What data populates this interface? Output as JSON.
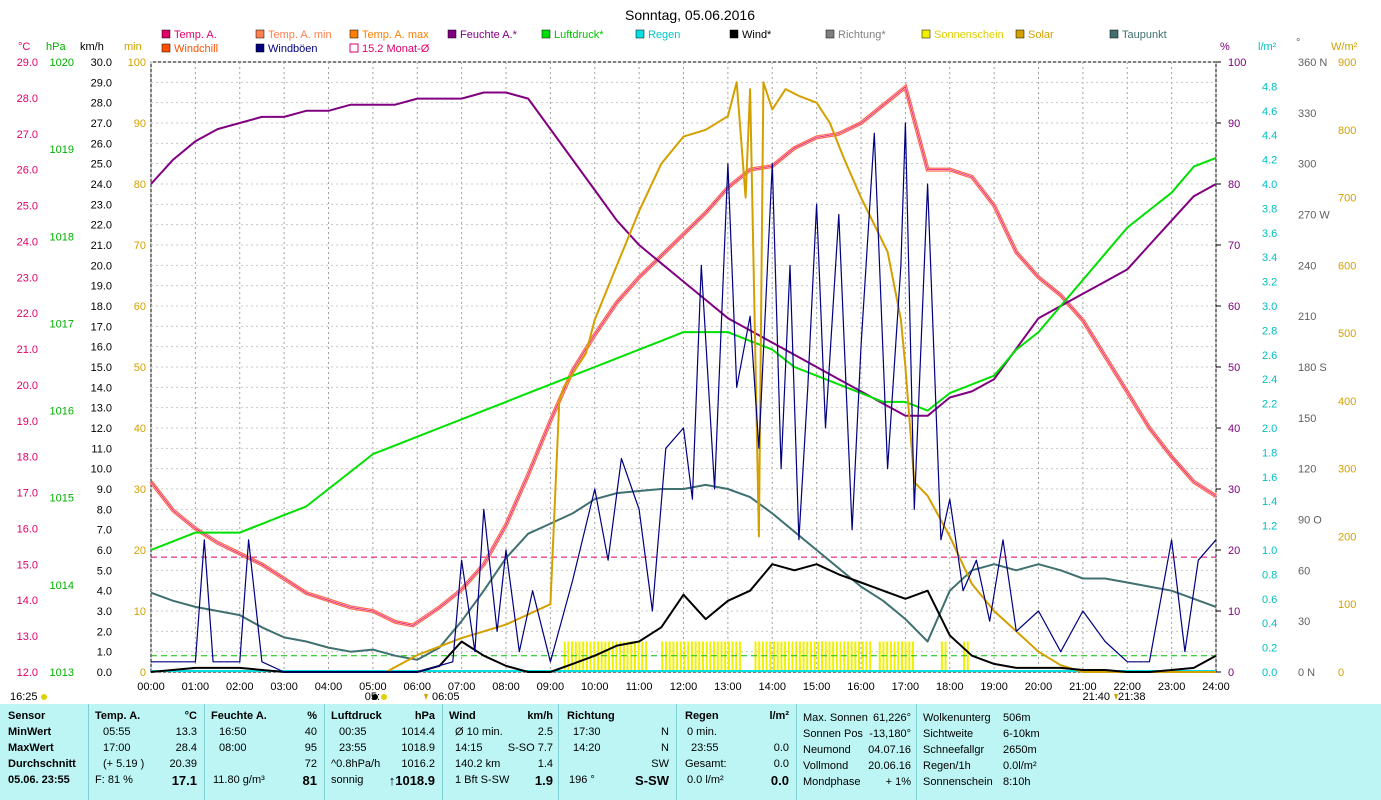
{
  "title": "Sonntag, 05.06.2016",
  "legend": [
    {
      "label": "Temp. A.",
      "color": "#e0006a"
    },
    {
      "label": "Temp. A. min",
      "color": "#ff7f50"
    },
    {
      "label": "Temp. A. max",
      "color": "#ff7f00"
    },
    {
      "label": "Feuchte A.*",
      "color": "#800080"
    },
    {
      "label": "Luftdruck*",
      "color": "#00e000"
    },
    {
      "label": "Regen",
      "color": "#00e0e0"
    },
    {
      "label": "Wind*",
      "color": "#000000"
    },
    {
      "label": "Richtung*",
      "color": "#808080"
    },
    {
      "label": "Sonnenschein",
      "color": "#f0f000"
    },
    {
      "label": "Solar",
      "color": "#d4a000"
    },
    {
      "label": "Taupunkt",
      "color": "#407070"
    },
    {
      "label": "Windchill",
      "color": "#ff5000"
    },
    {
      "label": "Windböen",
      "color": "#000080"
    },
    {
      "label": "15.2 Monat-Ø",
      "color": "#e0006a"
    }
  ],
  "axis_units": {
    "temp": "°C",
    "press": "hPa",
    "wind": "km/h",
    "min": "min",
    "hum": "%",
    "rain": "l/m²",
    "dir": "°",
    "solar": "W/m²"
  },
  "chart_data": {
    "type": "line",
    "x_ticks": [
      "00:00",
      "01:00",
      "02:00",
      "03:00",
      "04:00",
      "05:00",
      "06:00",
      "07:00",
      "08:00",
      "09:00",
      "10:00",
      "11:00",
      "12:00",
      "13:00",
      "14:00",
      "15:00",
      "16:00",
      "17:00",
      "18:00",
      "19:00",
      "20:00",
      "21:00",
      "22:00",
      "23:00",
      "24:00"
    ],
    "axes": {
      "temp": {
        "range": [
          12,
          29
        ],
        "ticks": [
          "29.0",
          "28.0",
          "27.0",
          "26.0",
          "25.0",
          "24.0",
          "23.0",
          "22.0",
          "21.0",
          "20.0",
          "19.0",
          "18.0",
          "17.0",
          "16.0",
          "15.0",
          "14.0",
          "13.0",
          "12.0"
        ]
      },
      "pressure": {
        "range": [
          1013,
          1020
        ],
        "ticks": [
          "1020",
          "1019",
          "1018",
          "1017",
          "1016",
          "1015",
          "1014",
          "1013"
        ]
      },
      "wind": {
        "range": [
          0,
          30
        ],
        "ticks": [
          "30.0",
          "29.0",
          "28.0",
          "27.0",
          "26.0",
          "25.0",
          "24.0",
          "23.0",
          "22.0",
          "21.0",
          "20.0",
          "19.0",
          "18.0",
          "17.0",
          "16.0",
          "15.0",
          "14.0",
          "13.0",
          "12.0",
          "11.0",
          "10.0",
          "9.0",
          "8.0",
          "7.0",
          "6.0",
          "5.0",
          "4.0",
          "3.0",
          "2.0",
          "1.0",
          "0.0"
        ]
      },
      "minutes": {
        "range": [
          0,
          100
        ],
        "ticks": [
          "100",
          "90",
          "80",
          "70",
          "60",
          "50",
          "40",
          "30",
          "20",
          "10",
          "0"
        ]
      },
      "humidity": {
        "range": [
          0,
          100
        ],
        "ticks": [
          "100",
          "90",
          "80",
          "70",
          "60",
          "50",
          "40",
          "30",
          "20",
          "10",
          "0"
        ]
      },
      "rain": {
        "range": [
          0,
          5
        ],
        "ticks": [
          "4.8",
          "4.6",
          "4.4",
          "4.2",
          "4.0",
          "3.8",
          "3.6",
          "3.4",
          "3.2",
          "3.0",
          "2.8",
          "2.6",
          "2.4",
          "2.2",
          "2.0",
          "1.8",
          "1.6",
          "1.4",
          "1.2",
          "1.0",
          "0.8",
          "0.6",
          "0.4",
          "0.2",
          "0.0"
        ]
      },
      "direction": {
        "range": [
          0,
          360
        ],
        "ticks": [
          "360 N",
          "330",
          "300",
          "270 W",
          "240",
          "210",
          "180 S",
          "150",
          "120",
          "90 O",
          "60",
          "30",
          "0 N"
        ]
      },
      "solar": {
        "range": [
          0,
          900
        ],
        "ticks": [
          "900",
          "800",
          "700",
          "600",
          "500",
          "400",
          "300",
          "200",
          "100",
          "0"
        ]
      }
    },
    "series": [
      {
        "name": "Temp. A.",
        "axis": "temp",
        "color": "#e0006a",
        "x": [
          0,
          0.5,
          1,
          1.5,
          2,
          2.5,
          3,
          3.5,
          4,
          4.5,
          5,
          5.5,
          5.9,
          6.5,
          7,
          7.5,
          8,
          8.5,
          9,
          9.5,
          10,
          10.5,
          11,
          11.5,
          12,
          12.5,
          13,
          13.5,
          14,
          14.5,
          15,
          15.5,
          16,
          16.5,
          17,
          17.5,
          18,
          18.5,
          19,
          19.5,
          20,
          20.5,
          21,
          21.5,
          22,
          22.5,
          23,
          23.5,
          24
        ],
        "y": [
          17.3,
          16.5,
          16.0,
          15.6,
          15.3,
          15.0,
          14.6,
          14.2,
          14.0,
          13.8,
          13.7,
          13.4,
          13.3,
          13.8,
          14.3,
          15.0,
          16.1,
          17.5,
          19.0,
          20.4,
          21.4,
          22.3,
          23.0,
          23.6,
          24.2,
          24.8,
          25.5,
          26.0,
          26.1,
          26.6,
          26.9,
          27.0,
          27.3,
          27.8,
          28.3,
          26.0,
          26.0,
          25.8,
          25.0,
          23.7,
          23.0,
          22.5,
          21.8,
          20.8,
          19.8,
          18.8,
          18.0,
          17.3,
          16.9
        ]
      },
      {
        "name": "Feuchte A.*",
        "axis": "humidity",
        "color": "#800080",
        "x": [
          0,
          0.5,
          1,
          1.5,
          2,
          2.5,
          3,
          3.5,
          4,
          4.5,
          5,
          5.5,
          6,
          6.5,
          7,
          7.5,
          8,
          8.5,
          9,
          9.5,
          10,
          10.5,
          11,
          11.5,
          12,
          12.5,
          13,
          13.5,
          14,
          14.5,
          15,
          15.5,
          16,
          16.5,
          17,
          17.5,
          18,
          18.5,
          19,
          19.5,
          20,
          20.5,
          21,
          21.5,
          22,
          22.5,
          23,
          23.5,
          24
        ],
        "y": [
          80,
          84,
          87,
          89,
          90,
          91,
          91,
          92,
          92,
          93,
          93,
          93,
          94,
          94,
          94,
          95,
          95,
          94,
          89,
          84,
          79,
          74,
          70,
          67,
          64,
          61,
          58,
          56,
          54,
          52,
          50,
          48,
          46,
          44,
          42,
          42,
          45,
          46,
          48,
          53,
          58,
          60,
          62,
          64,
          66,
          70,
          74,
          78,
          80
        ]
      },
      {
        "name": "Luftdruck*",
        "axis": "pressure",
        "color": "#00e000",
        "x": [
          0,
          0.5,
          1,
          1.5,
          2,
          2.5,
          3,
          3.5,
          4,
          4.5,
          5,
          5.5,
          6,
          6.5,
          7,
          7.5,
          8,
          8.5,
          9,
          9.5,
          10,
          10.5,
          11,
          11.5,
          12,
          12.5,
          13,
          13.5,
          14,
          14.5,
          15,
          15.5,
          16,
          16.5,
          17,
          17.5,
          18,
          18.5,
          19,
          19.5,
          20,
          20.5,
          21,
          21.5,
          22,
          22.5,
          23,
          23.5,
          24
        ],
        "y": [
          1014.4,
          1014.5,
          1014.6,
          1014.6,
          1014.6,
          1014.7,
          1014.8,
          1014.9,
          1015.1,
          1015.3,
          1015.5,
          1015.6,
          1015.7,
          1015.8,
          1015.9,
          1016.0,
          1016.1,
          1016.2,
          1016.3,
          1016.4,
          1016.5,
          1016.6,
          1016.7,
          1016.8,
          1016.9,
          1016.9,
          1016.9,
          1016.8,
          1016.7,
          1016.5,
          1016.4,
          1016.3,
          1016.2,
          1016.1,
          1016.1,
          1016.0,
          1016.2,
          1016.3,
          1016.4,
          1016.7,
          1016.9,
          1017.2,
          1017.5,
          1017.8,
          1018.1,
          1018.3,
          1018.5,
          1018.8,
          1018.9
        ]
      },
      {
        "name": "Taupunkt",
        "axis": "wind",
        "color": "#407070",
        "x": [
          0,
          0.5,
          1,
          1.5,
          2,
          2.5,
          3,
          3.5,
          4,
          4.5,
          5,
          5.5,
          6,
          6.5,
          7,
          7.5,
          8,
          8.5,
          9,
          9.5,
          10,
          10.5,
          11,
          11.5,
          12,
          12.5,
          13,
          13.5,
          14,
          14.5,
          15,
          15.5,
          16,
          16.5,
          17,
          17.5,
          18,
          18.5,
          19,
          19.5,
          20,
          20.5,
          21,
          21.5,
          22,
          22.5,
          23,
          23.5,
          24
        ],
        "y": [
          3.9,
          3.5,
          3.2,
          3.0,
          2.8,
          2.2,
          1.7,
          1.5,
          1.2,
          1.0,
          1.1,
          0.8,
          0.6,
          1.2,
          2.5,
          4.0,
          5.6,
          6.8,
          7.3,
          7.8,
          8.5,
          8.8,
          8.9,
          9.0,
          9.0,
          9.2,
          9.0,
          8.6,
          7.8,
          6.9,
          6.0,
          5.1,
          4.2,
          3.5,
          2.6,
          1.5,
          4.0,
          5.0,
          5.3,
          5.0,
          5.3,
          5.0,
          4.6,
          4.6,
          4.4,
          4.2,
          4.0,
          3.6,
          3.2
        ]
      },
      {
        "name": "Solar",
        "axis": "solar",
        "color": "#d4a000",
        "x": [
          5.3,
          6,
          7,
          8,
          9,
          9.2,
          9.3,
          9.8,
          10,
          10.5,
          11,
          11.5,
          12,
          12.5,
          13,
          13.2,
          13.4,
          13.5,
          13.7,
          13.8,
          14,
          14.3,
          14.6,
          15,
          15.3,
          15.6,
          16,
          16.3,
          16.6,
          16.9,
          17,
          17.2,
          17.5,
          18,
          18.5,
          19,
          19.5,
          20,
          20.5,
          21,
          21.5,
          22,
          22.5,
          23,
          24
        ],
        "y": [
          0,
          25,
          50,
          70,
          100,
          400,
          420,
          470,
          520,
          600,
          680,
          750,
          790,
          800,
          820,
          870,
          700,
          860,
          200,
          870,
          830,
          860,
          850,
          840,
          810,
          760,
          700,
          660,
          620,
          520,
          450,
          280,
          260,
          200,
          130,
          90,
          60,
          30,
          10,
          0,
          0,
          0,
          0,
          0,
          0
        ]
      },
      {
        "name": "Wind*",
        "axis": "wind",
        "color": "#000000",
        "x": [
          0,
          1,
          2,
          3,
          4,
          5,
          6,
          6.5,
          7,
          7.5,
          8,
          8.5,
          9,
          9.5,
          10,
          10.5,
          11,
          11.5,
          12,
          12.5,
          13,
          13.5,
          14,
          14.5,
          15,
          15.5,
          16,
          16.5,
          17,
          17.5,
          18,
          18.5,
          19,
          19.5,
          20,
          20.5,
          21,
          21.5,
          22,
          22.5,
          23,
          23.5,
          24
        ],
        "y": [
          0,
          0.2,
          0.2,
          0,
          0,
          0,
          0,
          0.3,
          1.5,
          0.8,
          0.3,
          0,
          0,
          0.4,
          0.8,
          1.3,
          1.5,
          2.2,
          3.8,
          2.6,
          3.5,
          4.0,
          5.3,
          5.0,
          5.3,
          4.8,
          4.4,
          4.0,
          3.6,
          4.0,
          1.8,
          0.8,
          0.4,
          0.2,
          0.2,
          0.2,
          0.1,
          0.1,
          0,
          0,
          0.1,
          0.2,
          0.8
        ]
      },
      {
        "name": "Windböen",
        "axis": "wind",
        "color": "#000080",
        "x": [
          0,
          1,
          1.2,
          1.4,
          2,
          2.2,
          2.5,
          3,
          4,
          5,
          6,
          6.8,
          7,
          7.3,
          7.5,
          7.8,
          8,
          8.3,
          8.6,
          9,
          9.5,
          10,
          10.3,
          10.6,
          11,
          11.3,
          11.6,
          12,
          12.2,
          12.4,
          12.7,
          13,
          13.2,
          13.5,
          13.7,
          14,
          14.2,
          14.4,
          14.6,
          14.8,
          15,
          15.2,
          15.5,
          15.8,
          16,
          16.3,
          16.6,
          16.9,
          17,
          17.2,
          17.5,
          17.8,
          18,
          18.3,
          18.6,
          18.9,
          19.2,
          19.5,
          20,
          20.5,
          21,
          21.5,
          22,
          22.5,
          23,
          23.3,
          23.6,
          24
        ],
        "y": [
          0.5,
          0.5,
          6.5,
          0.5,
          0.5,
          6.5,
          0.5,
          0,
          0,
          0,
          0,
          0.5,
          5.5,
          1.0,
          8.0,
          2.0,
          6.0,
          1.0,
          4.0,
          0.5,
          4.5,
          9.0,
          5.5,
          10.5,
          8.0,
          3.0,
          11.0,
          12.0,
          8.5,
          20.0,
          9.0,
          25.0,
          14.0,
          17.5,
          11.0,
          25.0,
          10.0,
          20.0,
          6.5,
          14.0,
          23.0,
          12.0,
          22.5,
          7.0,
          16.0,
          26.5,
          10.0,
          20.0,
          27.0,
          8.0,
          24.0,
          6.5,
          8.5,
          4.0,
          5.5,
          2.5,
          6.5,
          2.0,
          3.0,
          1.0,
          3.0,
          1.5,
          0.5,
          0.5,
          6.5,
          1.0,
          5.5,
          6.5
        ]
      }
    ],
    "month_average": {
      "label": "15.2 Monat-Ø",
      "axis": "temp",
      "value": 15.2,
      "color": "#e0006a"
    },
    "sunshine_intervals": [
      [
        9.3,
        11.2
      ],
      [
        11.5,
        13.3
      ],
      [
        13.6,
        16.2
      ],
      [
        16.4,
        17.2
      ],
      [
        17.8,
        17.9
      ],
      [
        18.3,
        18.4
      ]
    ],
    "sun_markers": {
      "sunrise": "05:11",
      "sunrise_label": "05:",
      "time_0605": "06:05",
      "sunset": "21:40",
      "sunset_label": "21:40",
      "time_2138": "21:38",
      "time_1625": "16:25"
    }
  },
  "panel": {
    "sensor": {
      "h": "Sensor",
      "min": "MinWert",
      "max": "MaxWert",
      "avg": "Durchschnitt",
      "now": "05.06. 23:55"
    },
    "temp": {
      "h": "Temp. A.",
      "unit": "°C",
      "min_time": "05:55",
      "min": "13.3",
      "max_time": "17:00",
      "max": "28.4",
      "avg_diff": "(+ 5.19 )",
      "avg": "20.39",
      "feel": "F: 81 %",
      "current": "17.1"
    },
    "hum": {
      "h": "Feuchte A.",
      "unit": "%",
      "min_time": "16:50",
      "min": "40",
      "max_time": "08:00",
      "max": "95",
      "avg": "72",
      "abs": "11.80 g/m³",
      "current": "81"
    },
    "press": {
      "h": "Luftdruck",
      "unit": "hPa",
      "min_time": "00:35",
      "min": "1014.4",
      "max_time": "23:55",
      "max": "1018.9",
      "trend": "^0.8hPa/h",
      "avg": "1016.2",
      "status": "sonnig",
      "current": "↑1018.9"
    },
    "wind": {
      "h": "Wind",
      "unit": "km/h",
      "r1a": "Ø 10 min.",
      "r1b": "2.5",
      "r2a": "14:15",
      "r2b": "S-SO 7.7",
      "r3a": "140.2 km",
      "r3b": "1.4",
      "r4a": "1 Bft S-SW",
      "r4b": "1.9"
    },
    "dir": {
      "h": "Richtung",
      "r1a": "17:30",
      "r1b": "N",
      "r2a": "14:20",
      "r2b": "N",
      "r3b": "SW",
      "r4a": "196 °",
      "r4b": "S-SW"
    },
    "rain": {
      "h": "Regen",
      "unit": "l/m²",
      "r1a": "0 min.",
      "r2a": "23:55",
      "r2b": "0.0",
      "r3a": "Gesamt:",
      "r3b": "0.0",
      "r4a": "0.0 l/m²",
      "r4b": "0.0"
    },
    "astro": {
      "r0a": "Max. Sonnen",
      "r0b": "61,226°",
      "r1a": "Sonnen Pos",
      "r1b": "-13,180°",
      "r2a": "Neumond",
      "r2b": "04.07.16",
      "r3a": "Vollmond",
      "r3b": "20.06.16",
      "r4a": "Mondphase",
      "r4b": "+ 1%"
    },
    "misc": {
      "r0a": "Wolkenunterg",
      "r0b": "506m",
      "r1a": "Sichtweite",
      "r1b": "6-10km",
      "r2a": "Schneefallgr",
      "r2b": "2650m",
      "r3a": "Regen/1h",
      "r3b": "0.0l/m²",
      "r4a": "Sonnenschein",
      "r4b": "8:10h"
    }
  }
}
